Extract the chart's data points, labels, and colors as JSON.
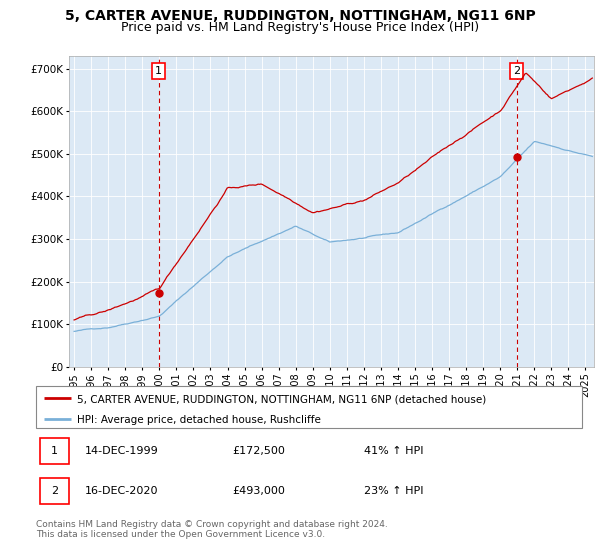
{
  "title_line1": "5, CARTER AVENUE, RUDDINGTON, NOTTINGHAM, NG11 6NP",
  "title_line2": "Price paid vs. HM Land Registry's House Price Index (HPI)",
  "title_fontsize": 10,
  "subtitle_fontsize": 9,
  "ylabel_ticks": [
    "£0",
    "£100K",
    "£200K",
    "£300K",
    "£400K",
    "£500K",
    "£600K",
    "£700K"
  ],
  "ytick_values": [
    0,
    100000,
    200000,
    300000,
    400000,
    500000,
    600000,
    700000
  ],
  "ylim": [
    0,
    730000
  ],
  "xlim_start": 1994.7,
  "xlim_end": 2025.5,
  "background_color": "#ffffff",
  "plot_bg_color": "#dce9f5",
  "grid_color": "#ffffff",
  "red_line_color": "#cc0000",
  "blue_line_color": "#7ab0d8",
  "marker1_date": 1999.96,
  "marker1_value": 172500,
  "marker2_date": 2020.96,
  "marker2_value": 493000,
  "legend_red_label": "5, CARTER AVENUE, RUDDINGTON, NOTTINGHAM, NG11 6NP (detached house)",
  "legend_blue_label": "HPI: Average price, detached house, Rushcliffe",
  "annotation1_label": "1",
  "annotation2_label": "2",
  "table_row1": [
    "1",
    "14-DEC-1999",
    "£172,500",
    "41% ↑ HPI"
  ],
  "table_row2": [
    "2",
    "16-DEC-2020",
    "£493,000",
    "23% ↑ HPI"
  ],
  "footer_text": "Contains HM Land Registry data © Crown copyright and database right 2024.\nThis data is licensed under the Open Government Licence v3.0.",
  "xtick_years": [
    1995,
    1996,
    1997,
    1998,
    1999,
    2000,
    2001,
    2002,
    2003,
    2004,
    2005,
    2006,
    2007,
    2008,
    2009,
    2010,
    2011,
    2012,
    2013,
    2014,
    2015,
    2016,
    2017,
    2018,
    2019,
    2020,
    2021,
    2022,
    2023,
    2024,
    2025
  ]
}
